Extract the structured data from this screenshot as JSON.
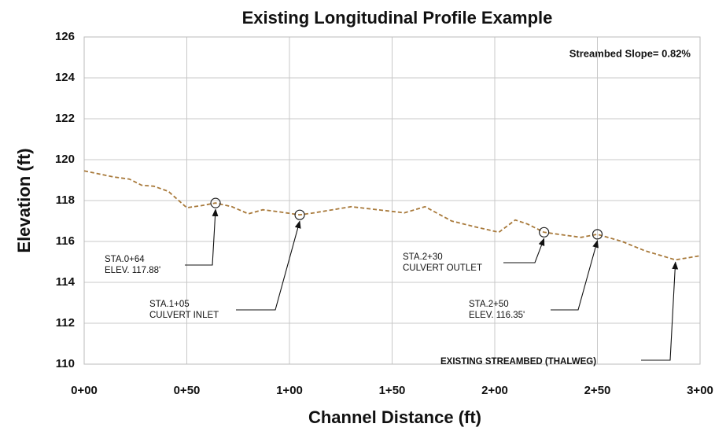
{
  "chart_data": {
    "type": "line",
    "title": "Existing Longitudinal Profile Example",
    "xlabel": "Channel Distance (ft)",
    "ylabel": "Elevation (ft)",
    "x": [
      0,
      14.6,
      22,
      28,
      34,
      41,
      50,
      57,
      64,
      72,
      80,
      87,
      95,
      105,
      112,
      130,
      143,
      156,
      166,
      179,
      191,
      202,
      210,
      216,
      224,
      231,
      242,
      250,
      262,
      273,
      288,
      300
    ],
    "series": [
      {
        "name": "EXISTING STREAMBED (THALWEG)",
        "color": "#a8793a",
        "values": [
          119.45,
          119.15,
          119.05,
          118.75,
          118.7,
          118.45,
          117.65,
          117.75,
          117.88,
          117.7,
          117.35,
          117.55,
          117.45,
          117.3,
          117.4,
          117.7,
          117.55,
          117.4,
          117.7,
          117.0,
          116.7,
          116.45,
          117.05,
          116.85,
          116.45,
          116.35,
          116.2,
          116.35,
          116.0,
          115.55,
          115.1,
          115.3
        ]
      }
    ],
    "xlim": [
      0,
      300
    ],
    "xticks": [
      {
        "value": 0,
        "label": "0+00"
      },
      {
        "value": 50,
        "label": "0+50"
      },
      {
        "value": 100,
        "label": "1+00"
      },
      {
        "value": 150,
        "label": "1+50"
      },
      {
        "value": 200,
        "label": "2+00"
      },
      {
        "value": 250,
        "label": "2+50"
      },
      {
        "value": 300,
        "label": "3+00"
      }
    ],
    "ylim": [
      110,
      126
    ],
    "yticks": [
      110,
      112,
      114,
      116,
      118,
      120,
      122,
      124,
      126
    ],
    "grid": true,
    "annotations": [
      {
        "lines": [
          "STA.0+64",
          "ELEV. 117.88'"
        ]
      },
      {
        "lines": [
          "STA.1+05",
          "CULVERT INLET"
        ]
      },
      {
        "lines": [
          "STA.2+30",
          "CULVERT OUTLET"
        ]
      },
      {
        "lines": [
          "STA.2+50",
          "ELEV. 116.35'"
        ]
      },
      {
        "lines": [
          "EXISTING STREAMBED (THALWEG)"
        ]
      }
    ],
    "note": "Streambed Slope= 0.82%"
  }
}
